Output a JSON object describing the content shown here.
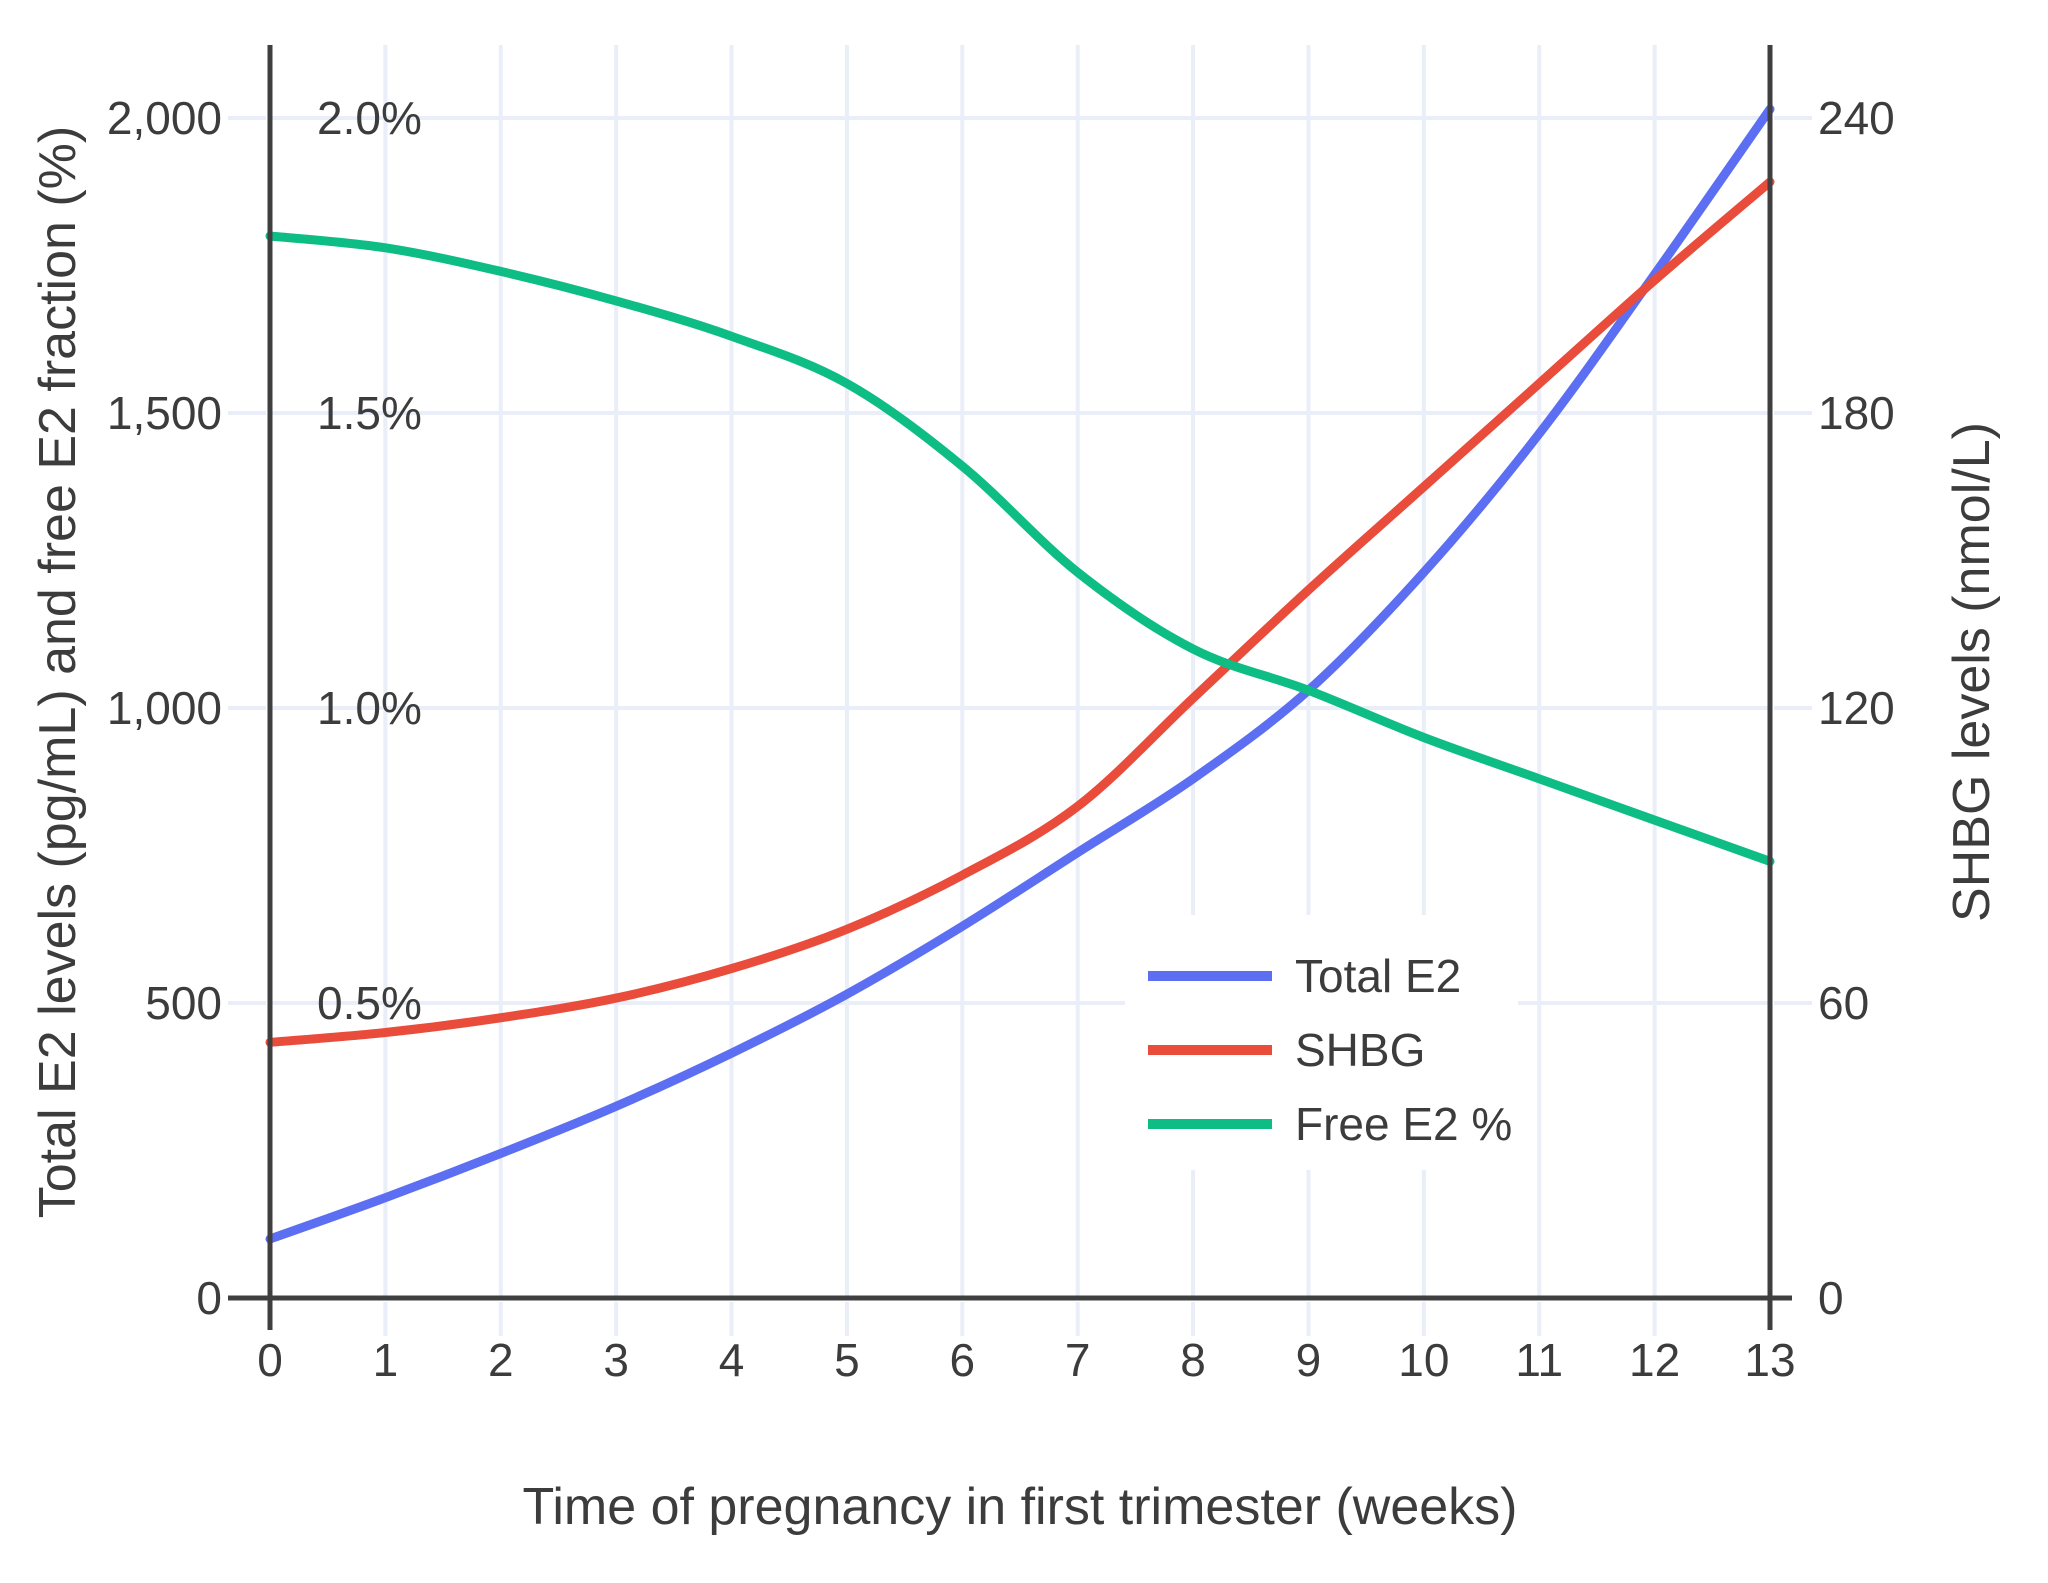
{
  "chart_data": {
    "type": "line",
    "title": "",
    "xlabel": "Time of pregnancy in first trimester (weeks)",
    "ylabel_left": "Total E2 levels (pg/mL) and free E2 fraction (%)",
    "ylabel_right": "SHBG levels (nmol/L)",
    "x": [
      0,
      1,
      2,
      3,
      4,
      5,
      6,
      7,
      8,
      9,
      10,
      11,
      12,
      13
    ],
    "x_tick_labels": [
      "0",
      "1",
      "2",
      "3",
      "4",
      "5",
      "6",
      "7",
      "8",
      "9",
      "10",
      "11",
      "12",
      "13"
    ],
    "xlim": [
      0,
      13
    ],
    "ylim_left": [
      0,
      2124
    ],
    "ylim_right": [
      0,
      255
    ],
    "grid": true,
    "y_ticks_left": [
      {
        "value": 0,
        "label": "0"
      },
      {
        "value": 500,
        "label": "500"
      },
      {
        "value": 1000,
        "label": "1,000"
      },
      {
        "value": 1500,
        "label": "1,500"
      },
      {
        "value": 2000,
        "label": "2,000"
      }
    ],
    "y_ticks_right": [
      {
        "value": 0,
        "label": "0"
      },
      {
        "value": 60,
        "label": "60"
      },
      {
        "value": 120,
        "label": "120"
      },
      {
        "value": 180,
        "label": "180"
      },
      {
        "value": 240,
        "label": "240"
      }
    ],
    "fraction_annotations": [
      {
        "value": 500,
        "label": "0.5%"
      },
      {
        "value": 1000,
        "label": "1.0%"
      },
      {
        "value": 1500,
        "label": "1.5%"
      },
      {
        "value": 2000,
        "label": "2.0%"
      }
    ],
    "legend_position": "inside-lower-right",
    "series": [
      {
        "name": "Total E2",
        "unit": "pg/mL",
        "axis": "left",
        "color": "#5C6EF2",
        "values": [
          100,
          170,
          245,
          325,
          415,
          515,
          630,
          755,
          880,
          1030,
          1230,
          1465,
          1735,
          2015
        ]
      },
      {
        "name": "SHBG",
        "unit": "nmol/L",
        "axis": "right",
        "color": "#EA4C3B",
        "values": [
          52,
          54,
          57,
          61,
          67,
          75,
          86,
          100,
          122,
          144,
          165,
          186,
          207,
          227
        ]
      },
      {
        "name": "Free E2 %",
        "unit": "%",
        "axis": "left_percent",
        "percent_scale_note": "1% plotted at 1000 on left axis",
        "color": "#0DBD84",
        "values": [
          1.8,
          1.78,
          1.74,
          1.69,
          1.63,
          1.55,
          1.41,
          1.23,
          1.1,
          1.03,
          0.95,
          0.88,
          0.81,
          0.74
        ]
      }
    ]
  },
  "colors": {
    "grid": "#E9EEF8",
    "axis_line": "#3F3F3F",
    "text": "#3C3C3C",
    "background": "#FFFFFF"
  }
}
